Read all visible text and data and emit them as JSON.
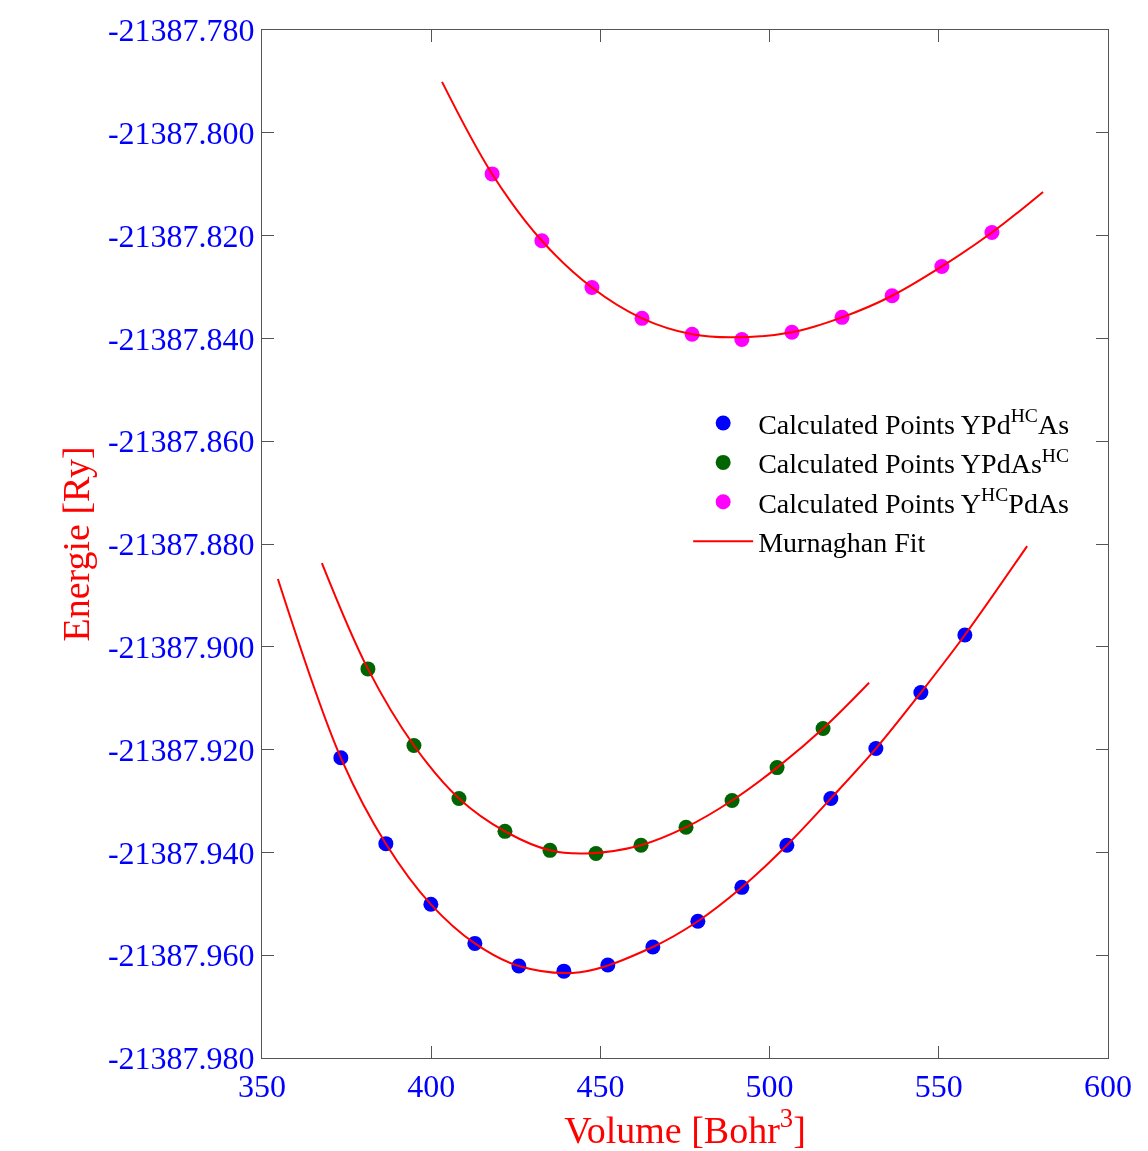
{
  "chart_data": {
    "type": "scatter",
    "xlabel": "Volume [Bohr$^{3}$]",
    "ylabel": "Energie [Ry]",
    "xlim": [
      350,
      600
    ],
    "xticks": [
      350,
      400,
      450,
      500,
      550,
      600
    ],
    "ylim": [
      -21387.98,
      -21387.78
    ],
    "yticks": [
      {
        "value": -21387.98,
        "label": "-21387.980"
      },
      {
        "value": -21387.96,
        "label": "-21387.960"
      },
      {
        "value": -21387.94,
        "label": "-21387.940"
      },
      {
        "value": -21387.92,
        "label": "-21387.920"
      },
      {
        "value": -21387.9,
        "label": "-21387.900"
      },
      {
        "value": -21387.88,
        "label": "-21387.880"
      },
      {
        "value": -21387.86,
        "label": "-21387.860"
      },
      {
        "value": -21387.84,
        "label": "-21387.840"
      },
      {
        "value": -21387.82,
        "label": "-21387.820"
      },
      {
        "value": -21387.8,
        "label": "-21387.800"
      },
      {
        "value": -21387.78,
        "label": "-21387.780"
      }
    ],
    "legend": "right",
    "marker": "circle",
    "series": [
      {
        "name": "Calculated Points YPd$^{HC}$As",
        "color": "#0000ff",
        "x": [
          373.3,
          386.6,
          399.9,
          412.9,
          425.9,
          439.2,
          452.2,
          465.5,
          478.8,
          491.8,
          505.1,
          518.1,
          531.4,
          544.7,
          557.7
        ],
        "values": [
          -21387.9216,
          -21387.9383,
          -21387.9501,
          -21387.9577,
          -21387.9621,
          -21387.9631,
          -21387.9619,
          -21387.9584,
          -21387.9534,
          -21387.9468,
          -21387.9386,
          -21387.9295,
          -21387.9198,
          -21387.9089,
          -21387.8977
        ]
      },
      {
        "name": "Calculated Points YPdAs$^{HC}$",
        "color": "#006400",
        "x": [
          381.3,
          394.9,
          408.2,
          421.8,
          435.1,
          448.7,
          462.0,
          475.3,
          488.9,
          502.2,
          515.8
        ],
        "values": [
          -21387.9043,
          -21387.9192,
          -21387.9295,
          -21387.9359,
          -21387.9396,
          -21387.9402,
          -21387.9386,
          -21387.9351,
          -21387.9299,
          -21387.9235,
          -21387.9159
        ]
      },
      {
        "name": "Calculated Points Y$^{HC}$PdAs",
        "color": "#ff00ff",
        "x": [
          418.0,
          432.7,
          447.5,
          462.3,
          477.1,
          491.8,
          506.6,
          521.4,
          536.2,
          550.9,
          565.7
        ],
        "values": [
          -21387.808,
          -21387.821,
          -21387.8301,
          -21387.8361,
          -21387.8392,
          -21387.8402,
          -21387.8388,
          -21387.8359,
          -21387.8317,
          -21387.826,
          -21387.8194
        ]
      },
      {
        "name": "Murnaghan Fit",
        "type": "line",
        "marker": "none",
        "color": "#ff0000",
        "x": [
          354.7,
          373.3,
          386.6,
          399.9,
          412.9,
          425.9,
          444.0,
          465.5,
          478.8,
          491.8,
          505.1,
          518.1,
          531.4,
          544.7,
          557.7,
          576.1
        ],
        "values": [
          -21387.8868,
          -21387.9216,
          -21387.9383,
          -21387.9501,
          -21387.9577,
          -21387.9621,
          -21387.9633,
          -21387.9584,
          -21387.9534,
          -21387.9468,
          -21387.9386,
          -21387.9295,
          -21387.9198,
          -21387.9089,
          -21387.8977,
          -21387.8804
        ]
      },
      {
        "type": "line",
        "marker": "none",
        "color": "#ff0000",
        "x": [
          367.7,
          381.3,
          394.9,
          408.2,
          421.8,
          435.1,
          446.0,
          462.0,
          475.3,
          488.9,
          502.2,
          515.8,
          529.4
        ],
        "values": [
          -21387.8837,
          -21387.9043,
          -21387.9192,
          -21387.9295,
          -21387.9359,
          -21387.9396,
          -21387.9402,
          -21387.9386,
          -21387.9351,
          -21387.9299,
          -21387.9235,
          -21387.9159,
          -21387.907
        ]
      },
      {
        "type": "line",
        "marker": "none",
        "color": "#ff0000",
        "x": [
          403.2,
          418.0,
          432.7,
          447.5,
          462.3,
          477.1,
          489.0,
          506.6,
          521.4,
          536.2,
          550.9,
          565.7,
          580.8
        ],
        "values": [
          -21387.7901,
          -21387.808,
          -21387.821,
          -21387.8301,
          -21387.8361,
          -21387.8392,
          -21387.8398,
          -21387.8388,
          -21387.8359,
          -21387.8317,
          -21387.826,
          -21387.8194,
          -21387.8115
        ]
      }
    ]
  }
}
